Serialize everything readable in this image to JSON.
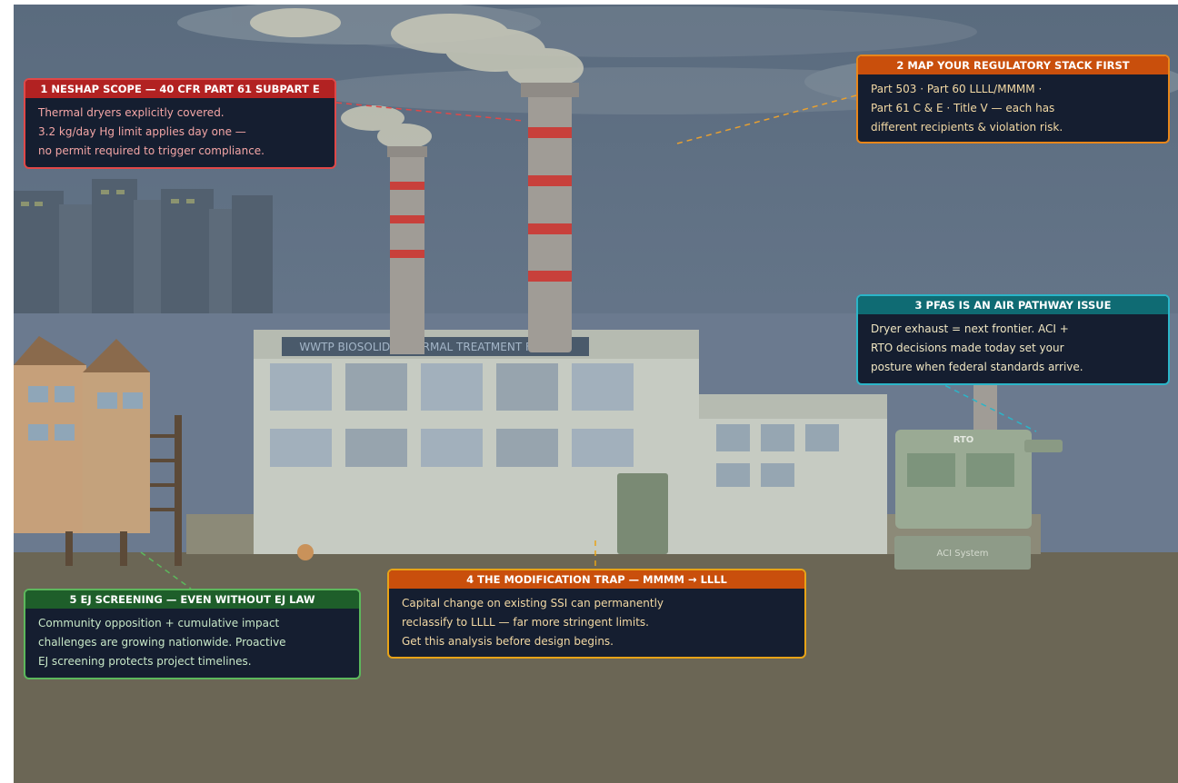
{
  "scene": {
    "facility_label": "WWTP BIOSOLIDS THERMAL TREATMENT FACILITY",
    "rto_label": "RTO",
    "aci_label": "ACI System"
  },
  "callouts": [
    {
      "number": "1",
      "title": "NESHAP SCOPE — 40 CFR PART 61 SUBPART E",
      "lines": [
        "Thermal dryers explicitly covered.",
        "3.2 kg/day Hg limit applies day one —",
        "no permit required to trigger compliance."
      ]
    },
    {
      "number": "2",
      "title": "MAP YOUR REGULATORY STACK FIRST",
      "lines": [
        "Part 503 · Part 60 LLLL/MMMM ·",
        "Part 61 C & E · Title V — each has",
        "different recipients & violation risk."
      ]
    },
    {
      "number": "3",
      "title": "PFAS IS AN AIR PATHWAY ISSUE",
      "lines": [
        "Dryer exhaust = next frontier. ACI +",
        "RTO decisions made today set your",
        "posture when federal standards arrive."
      ]
    },
    {
      "number": "4",
      "title": "THE MODIFICATION TRAP — MMMM → LLLL",
      "lines": [
        "Capital change on existing SSI can permanently",
        "reclassify to LLLL — far more stringent limits.",
        "Get this analysis before design begins."
      ]
    },
    {
      "number": "5",
      "title": "EJ SCREENING — EVEN WITHOUT EJ LAW",
      "lines": [
        "Community opposition + cumulative impact",
        "challenges are growing nationwide. Proactive",
        "EJ screening protects project timelines."
      ]
    }
  ]
}
